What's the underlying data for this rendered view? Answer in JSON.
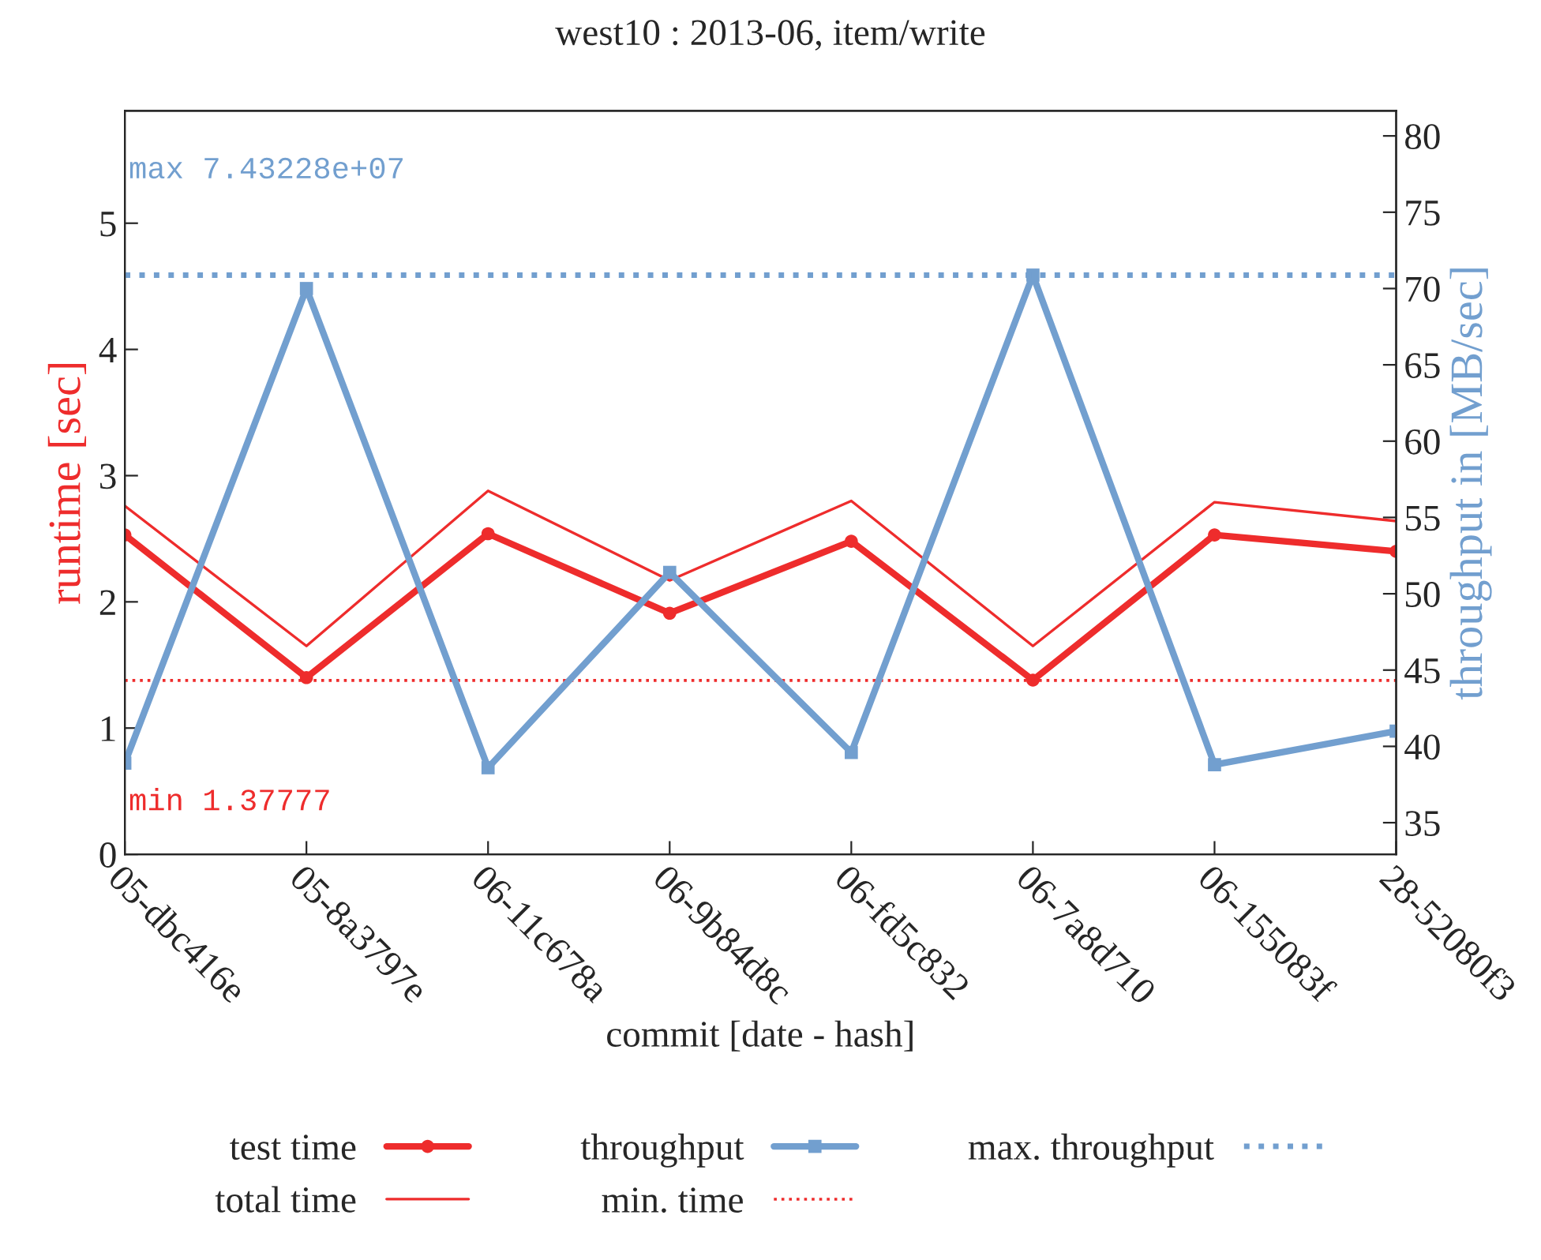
{
  "chart_data": {
    "type": "line",
    "title": "west10 : 2013-06, item/write",
    "xlabel": "commit [date - hash]",
    "ylabel": "runtime [sec]",
    "y2label": "throughput in [MB/sec]",
    "categories": [
      "05-dbc416e",
      "05-8a3797e",
      "06-11c678a",
      "06-9b84d8c",
      "06-fd5c832",
      "06-7a8d710",
      "06-155083f",
      "28-52080f3"
    ],
    "series": [
      {
        "name": "test time",
        "color": "#ee2c2c",
        "marker": "circle",
        "values": [
          2.53,
          1.4,
          2.54,
          1.91,
          2.48,
          1.38,
          2.53,
          2.4
        ]
      },
      {
        "name": "total time",
        "color": "#ee2c2c",
        "marker": "none",
        "values": [
          2.76,
          1.65,
          2.88,
          2.17,
          2.8,
          1.65,
          2.79,
          2.64
        ]
      },
      {
        "name": "throughput",
        "color": "#729fcf",
        "marker": "square",
        "axis": "y2",
        "values": [
          38.9,
          70.0,
          38.6,
          51.4,
          39.6,
          70.88,
          38.8,
          41.0
        ]
      }
    ],
    "ref_lines": [
      {
        "axis": "y",
        "value": 1.37777,
        "label": "min. time",
        "color": "#ee2c2c",
        "line_style": "dotted"
      },
      {
        "axis": "y2",
        "value": 70.88,
        "label": "max. throughput",
        "color": "#729fcf",
        "line_style": "dotted"
      }
    ],
    "annotations": [
      "max 7.43228e+07",
      "min 1.37777"
    ],
    "ylim": [
      0,
      5.89
    ],
    "yticks": [
      0,
      1,
      2,
      3,
      4,
      5
    ],
    "y2lim": [
      32.93,
      81.64
    ],
    "y2ticks": [
      35,
      40,
      45,
      50,
      55,
      60,
      65,
      70,
      75,
      80
    ],
    "grid": false,
    "legend": "bottom"
  }
}
